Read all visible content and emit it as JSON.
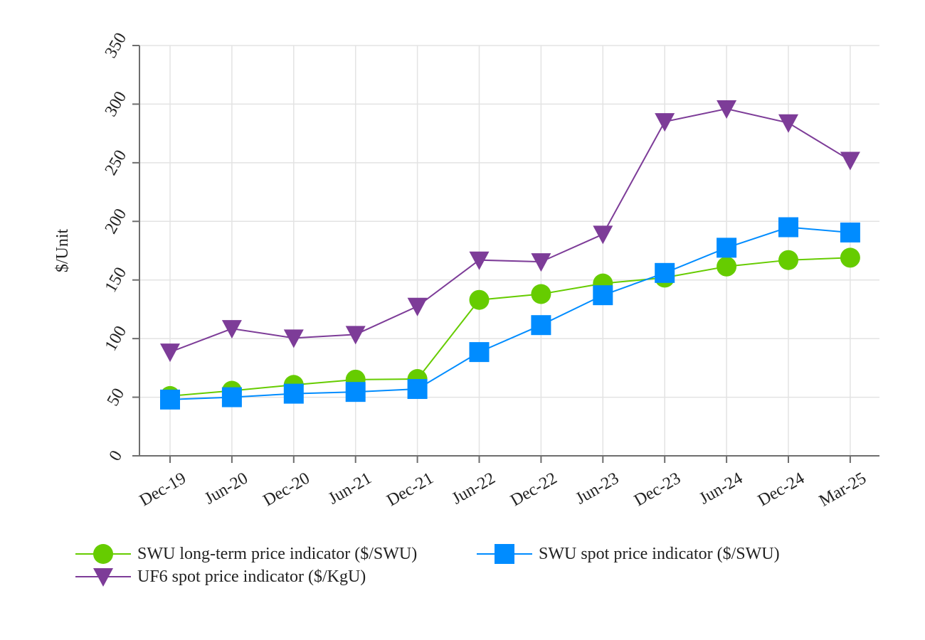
{
  "chart_data": {
    "type": "line",
    "title": "",
    "xlabel": "",
    "ylabel": "$/Unit",
    "ylim": [
      0,
      350
    ],
    "yticks": [
      0,
      50,
      100,
      150,
      200,
      250,
      300,
      350
    ],
    "grid": true,
    "legend_position": "bottom",
    "categories": [
      "Dec-19",
      "Jun-20",
      "Dec-20",
      "Jun-21",
      "Dec-21",
      "Jun-22",
      "Dec-22",
      "Jun-23",
      "Dec-23",
      "Jun-24",
      "Dec-24",
      "Mar-25"
    ],
    "series": [
      {
        "name": "SWU long-term price indicator ($/SWU)",
        "color": "#66cc00",
        "marker": "circle",
        "values": [
          51,
          55.5,
          60.5,
          65,
          65.5,
          133,
          138,
          147,
          152,
          161.5,
          167,
          169
        ]
      },
      {
        "name": "SWU spot price indicator ($/SWU)",
        "color": "#008cff",
        "marker": "square",
        "values": [
          48,
          50,
          53,
          54.5,
          57,
          88.5,
          111.5,
          137,
          156,
          177.5,
          195,
          190.5
        ]
      },
      {
        "name": "UF6 spot price indicator ($/KgU)",
        "color": "#7d3c98",
        "marker": "triangle-down",
        "values": [
          88.5,
          108.5,
          100.5,
          103.5,
          127.5,
          167,
          165.5,
          189,
          285,
          296,
          284,
          252
        ]
      }
    ]
  }
}
